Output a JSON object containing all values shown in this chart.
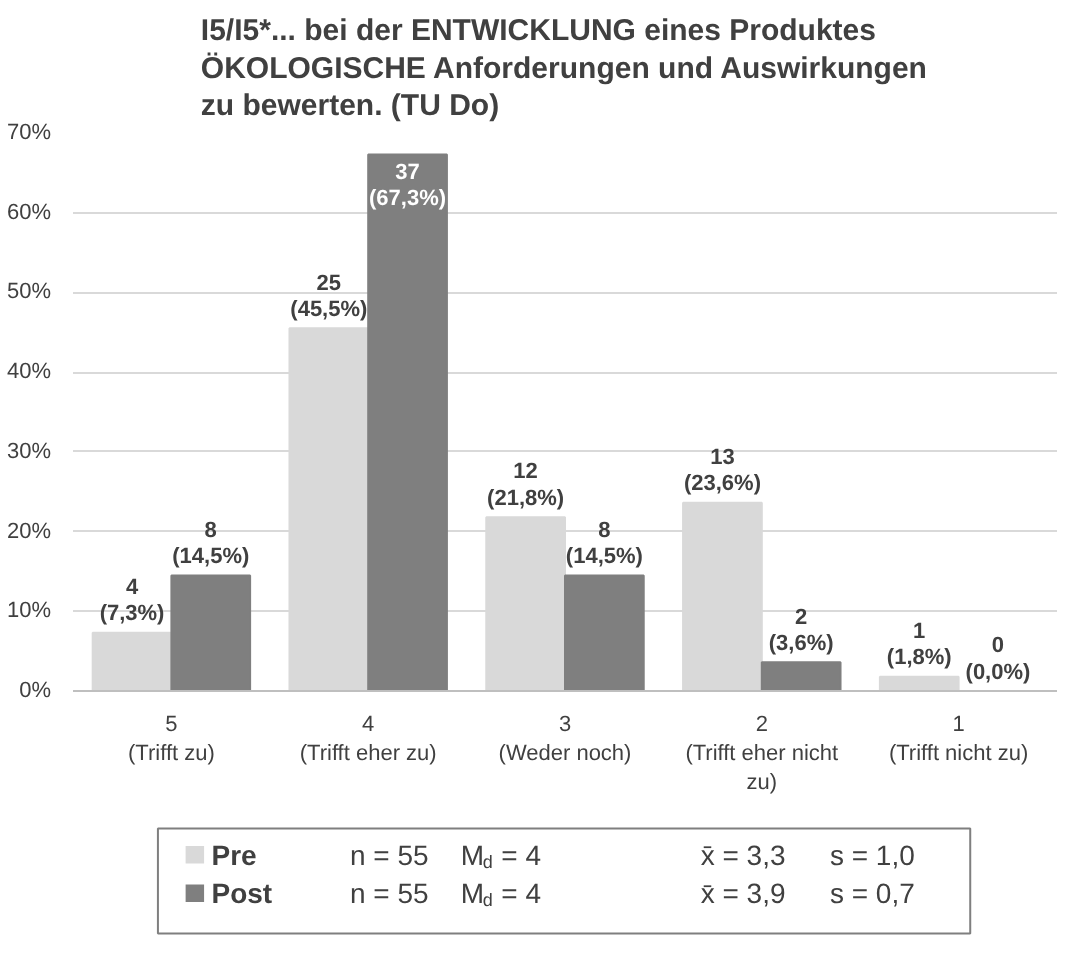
{
  "chart_data": {
    "type": "bar",
    "title": "I5/I5*... bei der ENTWICKLUNG eines Produktes\nÖKOLOGISCHE Anforderungen und Auswirkungen\nzu bewerten. (TU Do)",
    "categories": [
      "5\n(Trifft zu)",
      "4\n(Trifft eher zu)",
      "3\n(Weder noch)",
      "2\n(Trifft eher nicht\nzu)",
      "1\n(Trifft nicht zu)"
    ],
    "series": [
      {
        "name": "Pre",
        "color": "#d9d9d9",
        "values": [
          7.3,
          45.5,
          21.8,
          23.6,
          1.8
        ],
        "value_labels": [
          "4\n(7,3%)",
          "25\n(45,5%)",
          "12\n(21,8%)",
          "13\n(23,6%)",
          "1\n(1,8%)"
        ]
      },
      {
        "name": "Post",
        "color": "#7f7f7f",
        "values": [
          14.5,
          67.3,
          14.5,
          3.6,
          0.0
        ],
        "value_labels": [
          "8\n(14,5%)",
          "37\n(67,3%)",
          "8\n(14,5%)",
          "2\n(3,6%)",
          "0\n(0,0%)"
        ]
      }
    ],
    "ylim": [
      0,
      70
    ],
    "yticks": [
      {
        "value": 0,
        "label": "0%"
      },
      {
        "value": 10,
        "label": "10%"
      },
      {
        "value": 20,
        "label": "20%"
      },
      {
        "value": 30,
        "label": "30%"
      },
      {
        "value": 40,
        "label": "40%"
      },
      {
        "value": 50,
        "label": "50%"
      },
      {
        "value": 60,
        "label": "60%"
      },
      {
        "value": 70,
        "label": "70%"
      }
    ],
    "grid": "y",
    "legend": "bottom",
    "annotations": [
      "n = 55",
      "M$_{d}$ = 4",
      "x̄ = 3,3",
      "s = 1,0",
      "n = 55",
      "M$_{d}$ = 4",
      "x̄ = 3,9",
      "s = 0,7"
    ]
  }
}
